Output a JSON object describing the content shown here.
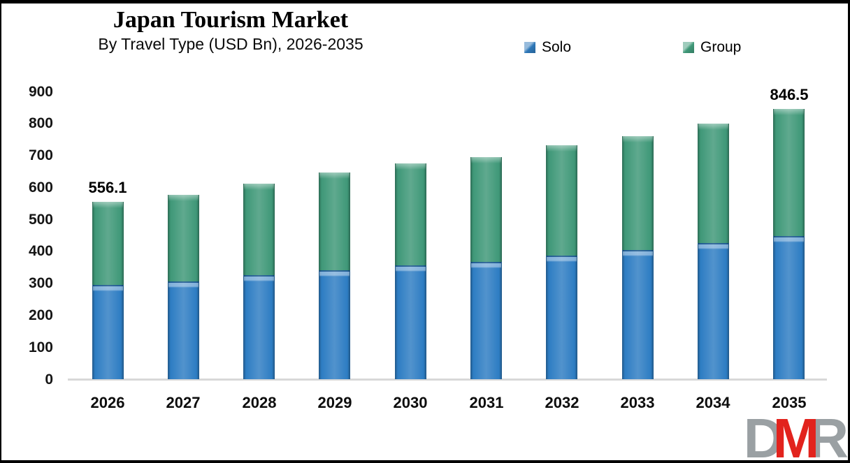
{
  "header": {
    "title": "Japan Tourism Market",
    "subtitle": "By Travel Type (USD Bn), 2026-2035"
  },
  "legend": {
    "items": [
      {
        "label": "Solo",
        "color": "#2e77b8"
      },
      {
        "label": "Group",
        "color": "#3f9878"
      }
    ]
  },
  "chart_data": {
    "type": "bar",
    "stacked": true,
    "title": "Japan Tourism Market",
    "subtitle": "By Travel Type (USD Bn), 2026-2035",
    "unit": "USD Bn",
    "categories": [
      "2026",
      "2027",
      "2028",
      "2029",
      "2030",
      "2031",
      "2032",
      "2033",
      "2034",
      "2035"
    ],
    "series": [
      {
        "name": "Solo",
        "color": "#2e7dc3",
        "values": [
          295,
          306,
          327,
          342,
          358,
          368,
          388,
          406,
          427,
          449
        ]
      },
      {
        "name": "Group",
        "color": "#3f9878",
        "values": [
          261.1,
          272,
          286,
          306,
          318,
          328,
          345,
          355,
          374,
          397.5
        ]
      }
    ],
    "totals": [
      556.1,
      578,
      613,
      648,
      676,
      696,
      733,
      761,
      801,
      846.5
    ],
    "data_labels": {
      "2026": "556.1",
      "2035": "846.5"
    },
    "yticks": [
      0,
      100,
      200,
      300,
      400,
      500,
      600,
      700,
      800,
      900
    ],
    "ylim": [
      0,
      900
    ],
    "grid": false,
    "legend_position": "top"
  },
  "logo": {
    "letters": [
      {
        "char": "D",
        "color": "#9aa0a3"
      },
      {
        "char": "M",
        "color": "#e2231d"
      },
      {
        "char": "R",
        "color": "#9aa0a3"
      }
    ]
  }
}
